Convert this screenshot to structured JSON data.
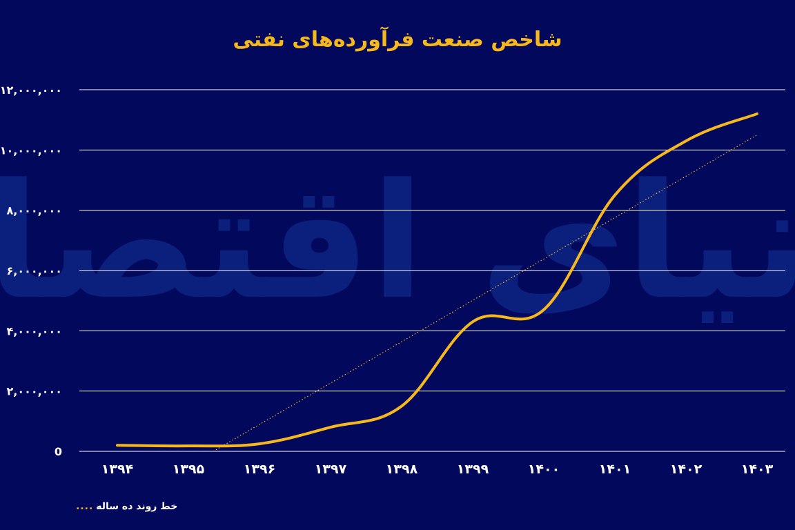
{
  "chart_data": {
    "type": "line",
    "title": "شاخص صنعت فرآورده‌های نفتی",
    "categories": [
      "۱۳۹۴",
      "۱۳۹۵",
      "۱۳۹۶",
      "۱۳۹۷",
      "۱۳۹۸",
      "۱۳۹۹",
      "۱۴۰۰",
      "۱۴۰۱",
      "۱۴۰۲",
      "۱۴۰۳"
    ],
    "y_tick_labels": [
      "0",
      "۲,۰۰۰,۰۰۰",
      "۴,۰۰۰,۰۰۰",
      "۶,۰۰۰,۰۰۰",
      "۸,۰۰۰,۰۰۰",
      "۱۰,۰۰۰,۰۰۰",
      "۱۲,۰۰۰,۰۰۰"
    ],
    "y_ticks": [
      0,
      2000000,
      4000000,
      6000000,
      8000000,
      10000000,
      12000000
    ],
    "ylim": [
      0,
      12000000
    ],
    "grid": true,
    "legend_position": "bottom-left",
    "series": [
      {
        "values": [
          200000,
          180000,
          250000,
          800000,
          1500000,
          4300000,
          4700000,
          8500000,
          10300000,
          11200000
        ],
        "color": "#f7b81d"
      }
    ],
    "trendline": {
      "label": "خط روند ده ساله",
      "x_start": 1395.35,
      "y_start": 0,
      "x_end": 1403,
      "y_end": 10500000,
      "color": "#f7b81d",
      "style": "dotted"
    },
    "watermark": "دنیای اقتصاد"
  },
  "colors": {
    "background": "#02085c",
    "accent": "#f7b81d",
    "grid": "#ffffff",
    "watermark": "#0f2a8a"
  }
}
